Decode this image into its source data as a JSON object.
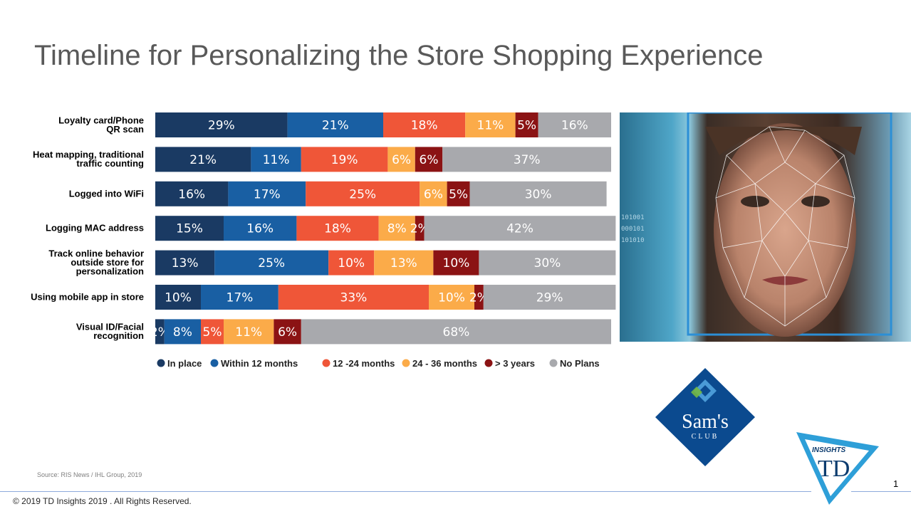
{
  "slide": {
    "title": "Timeline for Personalizing the Store Shopping Experience",
    "source": "Source: RIS News / IHL Group, 2019",
    "copyright": "© 2019 TD Insights 2019 . All Rights Reserved.",
    "page_number": "1",
    "logos": {
      "sams_word": "Sam's",
      "sams_sub": "CLUB",
      "td_word": "INSIGHTS",
      "td_mark": "TD"
    },
    "photo_binary": [
      "101001",
      "000101",
      "101010"
    ]
  },
  "chart_data": {
    "type": "bar",
    "orientation": "horizontal",
    "stacked": true,
    "categories": [
      "Loyalty card/Phone QR scan",
      "Heat mapping, traditional traffic counting",
      "Logged into WiFi",
      "Logging MAC address",
      "Track online behavior outside store for personalization",
      "Using mobile app in store",
      "Visual ID/Facial recognition"
    ],
    "category_lines": [
      [
        "Loyalty card/Phone",
        "QR scan"
      ],
      [
        "Heat mapping, traditional",
        "traffic counting"
      ],
      [
        "Logged into WiFi"
      ],
      [
        "Logging MAC address"
      ],
      [
        "Track online behavior",
        "outside store for",
        "personalization"
      ],
      [
        "Using mobile app in store"
      ],
      [
        "Visual ID/Facial",
        "recognition"
      ]
    ],
    "series": [
      {
        "name": "In place",
        "color": "#1a3a63",
        "values": [
          29,
          21,
          16,
          15,
          13,
          10,
          2
        ]
      },
      {
        "name": "Within 12 months",
        "color": "#195fa3",
        "values": [
          21,
          11,
          17,
          16,
          25,
          17,
          8
        ]
      },
      {
        "name": "12 -24 months",
        "color": "#ef5638",
        "values": [
          18,
          19,
          25,
          18,
          10,
          33,
          5
        ]
      },
      {
        "name": "24 - 36 months",
        "color": "#fbab49",
        "values": [
          11,
          6,
          6,
          8,
          13,
          10,
          11
        ]
      },
      {
        "name": "> 3 years",
        "color": "#8b1314",
        "values": [
          5,
          6,
          5,
          2,
          10,
          2,
          6
        ]
      },
      {
        "name": "No Plans",
        "color": "#a8a9ad",
        "values": [
          16,
          37,
          30,
          42,
          30,
          29,
          68
        ]
      }
    ],
    "value_suffix": "%",
    "legend_position": "bottom",
    "grid": false
  }
}
